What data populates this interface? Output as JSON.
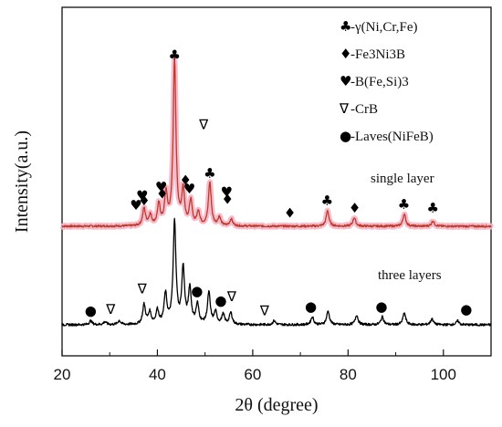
{
  "chart_data": {
    "type": "line",
    "xlabel": "2θ (degree)",
    "ylabel": "Intensity(a.u.)",
    "xlim": [
      20,
      110
    ],
    "x_ticks": [
      20,
      40,
      60,
      80,
      100
    ],
    "grid": false,
    "legend_position": "top-right",
    "colors": {
      "single_layer": "#c0392b",
      "single_layer_shadow": "#f4b6c6",
      "three_layers": "#000000"
    },
    "legend": [
      {
        "glyph": "♣",
        "icon": "club-icon",
        "text": "-γ(Ni,Cr,Fe)"
      },
      {
        "glyph": "♦",
        "icon": "diamond-icon",
        "text": "-Fe3Ni3B"
      },
      {
        "glyph": "♥",
        "icon": "heart-icon",
        "text": "-B(Fe,Si)3"
      },
      {
        "glyph": "∇",
        "icon": "nabla-icon",
        "text": "-CrB"
      },
      {
        "glyph": "●",
        "icon": "dot-icon",
        "text": "-Laves(NiFeB)"
      }
    ],
    "series": [
      {
        "name": "single layer",
        "baseline": 0.55,
        "peaks": [
          {
            "x": 37.2,
            "h": 0.1
          },
          {
            "x": 38.5,
            "h": 0.06
          },
          {
            "x": 40.3,
            "h": 0.12
          },
          {
            "x": 41.8,
            "h": 0.18
          },
          {
            "x": 43.6,
            "h": 0.95
          },
          {
            "x": 45.4,
            "h": 0.2
          },
          {
            "x": 47.0,
            "h": 0.14
          },
          {
            "x": 48.6,
            "h": 0.08
          },
          {
            "x": 51.0,
            "h": 0.25
          },
          {
            "x": 53.0,
            "h": 0.05
          },
          {
            "x": 55.5,
            "h": 0.04
          },
          {
            "x": 75.7,
            "h": 0.09
          },
          {
            "x": 81.3,
            "h": 0.05
          },
          {
            "x": 91.8,
            "h": 0.07
          },
          {
            "x": 97.8,
            "h": 0.03
          }
        ],
        "markers": [
          {
            "x": 35.5,
            "symbol": "♥",
            "h": 0.095
          },
          {
            "x": 36.8,
            "symbol": "♥",
            "h": 0.15
          },
          {
            "x": 37.2,
            "symbol": "♦",
            "h": 0.12
          },
          {
            "x": 40.8,
            "symbol": "♥",
            "h": 0.2
          },
          {
            "x": 41.0,
            "symbol": "♦",
            "h": 0.16
          },
          {
            "x": 43.6,
            "symbol": "♣",
            "h": 0.96
          },
          {
            "x": 45.9,
            "symbol": "♦",
            "h": 0.24
          },
          {
            "x": 46.7,
            "symbol": "♥",
            "h": 0.19
          },
          {
            "x": 51.0,
            "symbol": "♣",
            "h": 0.28
          },
          {
            "x": 49.7,
            "symbol": "∇",
            "h": 0.56
          },
          {
            "x": 54.5,
            "symbol": "♥",
            "h": 0.17
          },
          {
            "x": 54.7,
            "symbol": "♦",
            "h": 0.13
          },
          {
            "x": 67.8,
            "symbol": "♦",
            "h": 0.05
          },
          {
            "x": 75.6,
            "symbol": "♣",
            "h": 0.12
          },
          {
            "x": 81.4,
            "symbol": "♦",
            "h": 0.08
          },
          {
            "x": 91.7,
            "symbol": "♣",
            "h": 0.1
          },
          {
            "x": 97.8,
            "symbol": "♣",
            "h": 0.08
          }
        ]
      },
      {
        "name": "three layers",
        "baseline": 0.0,
        "peaks": [
          {
            "x": 26.0,
            "h": 0.02
          },
          {
            "x": 29.0,
            "h": 0.015
          },
          {
            "x": 32.0,
            "h": 0.02
          },
          {
            "x": 37.2,
            "h": 0.1
          },
          {
            "x": 38.4,
            "h": 0.06
          },
          {
            "x": 40.0,
            "h": 0.07
          },
          {
            "x": 41.7,
            "h": 0.15
          },
          {
            "x": 43.6,
            "h": 0.52
          },
          {
            "x": 45.4,
            "h": 0.28
          },
          {
            "x": 46.8,
            "h": 0.18
          },
          {
            "x": 48.4,
            "h": 0.1
          },
          {
            "x": 50.8,
            "h": 0.16
          },
          {
            "x": 52.2,
            "h": 0.06
          },
          {
            "x": 53.8,
            "h": 0.05
          },
          {
            "x": 55.4,
            "h": 0.06
          },
          {
            "x": 64.5,
            "h": 0.02
          },
          {
            "x": 72.5,
            "h": 0.04
          },
          {
            "x": 75.8,
            "h": 0.07
          },
          {
            "x": 81.8,
            "h": 0.05
          },
          {
            "x": 87.2,
            "h": 0.04
          },
          {
            "x": 91.8,
            "h": 0.06
          },
          {
            "x": 97.6,
            "h": 0.03
          },
          {
            "x": 103.0,
            "h": 0.02
          }
        ],
        "markers": [
          {
            "x": 26.0,
            "symbol": "●",
            "h": 0.05
          },
          {
            "x": 30.2,
            "symbol": "∇",
            "h": 0.055
          },
          {
            "x": 36.8,
            "symbol": "∇",
            "h": 0.16
          },
          {
            "x": 48.3,
            "symbol": "●",
            "h": 0.15
          },
          {
            "x": 53.3,
            "symbol": "●",
            "h": 0.1
          },
          {
            "x": 55.6,
            "symbol": "∇",
            "h": 0.12
          },
          {
            "x": 62.5,
            "symbol": "∇",
            "h": 0.05
          },
          {
            "x": 72.2,
            "symbol": "●",
            "h": 0.07
          },
          {
            "x": 87.0,
            "symbol": "●",
            "h": 0.07
          },
          {
            "x": 104.8,
            "symbol": "●",
            "h": 0.055
          }
        ]
      }
    ]
  }
}
